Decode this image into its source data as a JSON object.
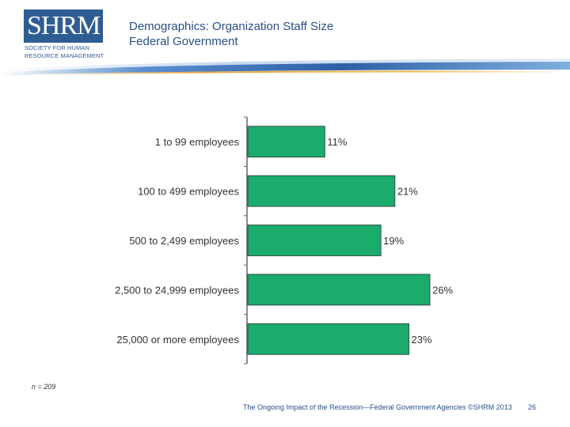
{
  "logo": {
    "wordmark": "SHRM",
    "registered": "®",
    "line1": "SOCIETY FOR HUMAN",
    "line2": "RESOURCE MANAGEMENT"
  },
  "header": {
    "title": "Demographics: Organization Staff Size",
    "subtitle": "Federal Government"
  },
  "colors": {
    "bar": "#1aab6d",
    "bar_stroke": "#333333",
    "title": "#2a4f86"
  },
  "chart_data": {
    "type": "bar",
    "orientation": "horizontal",
    "categories": [
      "1 to 99 employees",
      "100 to 499 employees",
      "500 to 2,499 employees",
      "2,500 to 24,999 employees",
      "25,000 or more employees"
    ],
    "values": [
      11,
      21,
      19,
      26,
      23
    ],
    "labels": [
      "11%",
      "21%",
      "19%",
      "26%",
      "23%"
    ],
    "unit": "%",
    "xlim": [
      0,
      30
    ],
    "title": "Demographics: Organization Staff Size",
    "subtitle": "Federal Government",
    "xlabel": "",
    "ylabel": ""
  },
  "note": "n = 209",
  "footer": {
    "text": "The Ongoing Impact of the Recession—Federal Government Agencies ©SHRM 2013",
    "page": "26"
  }
}
